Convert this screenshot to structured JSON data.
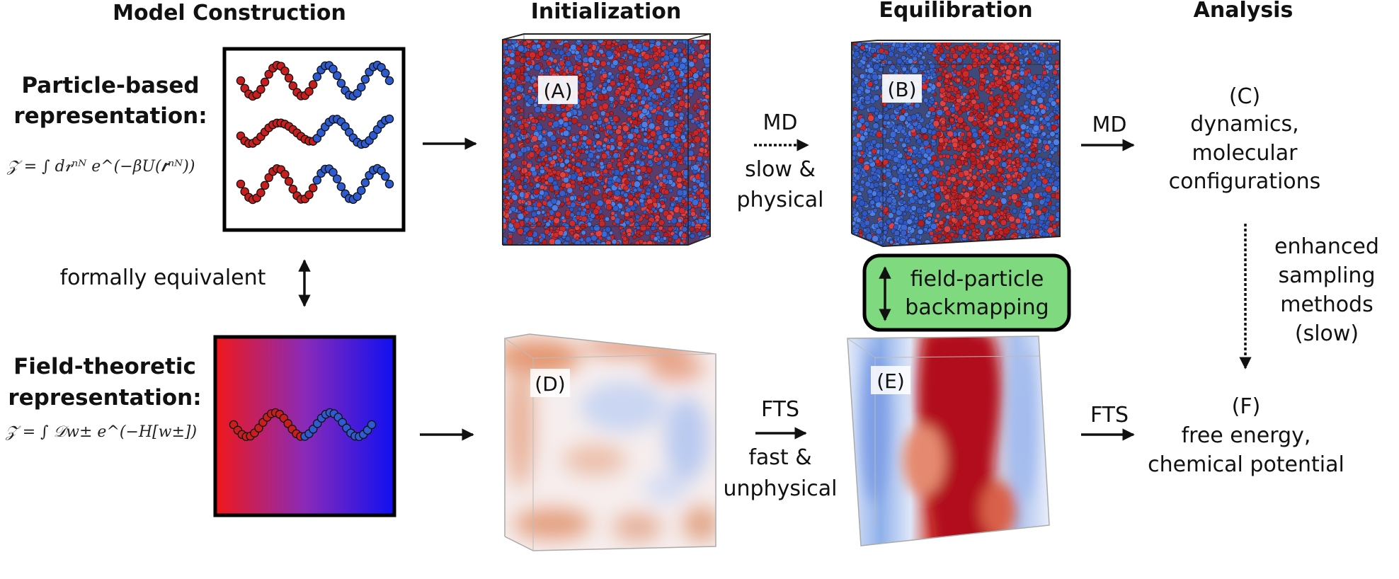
{
  "headers": {
    "model_construction": "Model Construction",
    "initialization": "Initialization",
    "equilibration": "Equilibration",
    "analysis": "Analysis"
  },
  "particle": {
    "title_line1": "Particle-based",
    "title_line2": "representation:",
    "equation": "𝒵 = ∫ d𝒓ⁿᴺ e^(−βU(𝒓ⁿᴺ))"
  },
  "field": {
    "title_line1": "Field-theoretic",
    "title_line2": "representation:",
    "equation": "𝒵 = ∫ 𝒟w± e^(−H[w±])"
  },
  "equivalence": "formally equivalent",
  "panels": {
    "A": "(A)",
    "B": "(B)",
    "C": "(C)",
    "D": "(D)",
    "E": "(E)",
    "F": "(F)"
  },
  "md_step": {
    "method": "MD",
    "line1": "slow &",
    "line2": "physical"
  },
  "fts_step": {
    "method": "FTS",
    "line1": "fast &",
    "line2": "unphysical"
  },
  "md_analysis": {
    "method": "MD",
    "line1": "dynamics,",
    "line2": "molecular",
    "line3": "configurations"
  },
  "fts_analysis": {
    "method": "FTS",
    "line1": "free energy,",
    "line2": "chemical potential"
  },
  "backmapping": {
    "line1": "field-particle",
    "line2": "backmapping",
    "fill": "#7fd97f"
  },
  "enhanced": {
    "line1": "enhanced",
    "line2": "sampling",
    "line3": "methods",
    "line4": "(slow)"
  },
  "colors": {
    "red": "#d62020",
    "blue": "#1a1ad8",
    "particle_red": "#c81e1e",
    "particle_blue": "#2f5bd0"
  }
}
